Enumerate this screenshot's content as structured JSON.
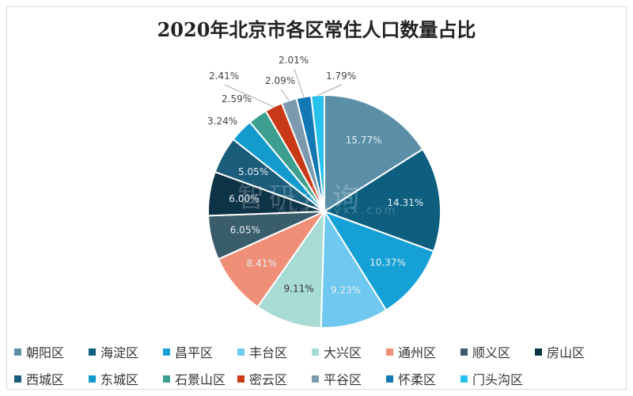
{
  "chart_data": {
    "type": "pie",
    "title": "2020年北京市各区常住人口数量占比",
    "categories": [
      "朝阳区",
      "海淀区",
      "昌平区",
      "丰台区",
      "大兴区",
      "通州区",
      "顺义区",
      "房山区",
      "西城区",
      "东城区",
      "石景山区",
      "密云区",
      "平谷区",
      "怀柔区",
      "门头沟区"
    ],
    "values": [
      15.77,
      14.31,
      10.37,
      9.23,
      9.11,
      8.41,
      6.05,
      6.0,
      5.05,
      3.24,
      2.59,
      2.41,
      2.09,
      2.01,
      1.79
    ],
    "labels": [
      "15.77%",
      "14.31%",
      "10.37%",
      "9.23%",
      "9.11%",
      "8.41%",
      "6.05%",
      "6.00%",
      "5.05%",
      "3.24%",
      "2.59%",
      "2.41%",
      "2.09%",
      "2.01%",
      "1.79%"
    ],
    "colors": [
      "#5b8fa8",
      "#0e5f7f",
      "#16a1d6",
      "#6ec8ef",
      "#a8dbd3",
      "#ef8f78",
      "#3a5d6b",
      "#0d3347",
      "#1b5c7a",
      "#129bcc",
      "#3b9e8e",
      "#c83a17",
      "#7c9aae",
      "#1178b4",
      "#26c2ed"
    ],
    "legend_position": "bottom"
  },
  "watermark": {
    "text": "智研咨询",
    "sub": "www.chyxx.com"
  }
}
